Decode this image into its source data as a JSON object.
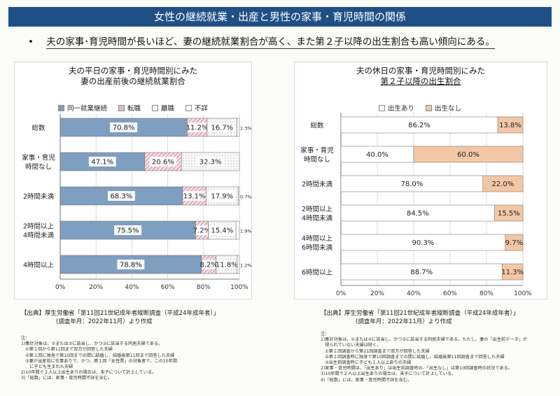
{
  "header": {
    "title": "女性の継続就業・出産と男性の家事・育児時間の関係",
    "bullet": "•",
    "lead": "夫の家事･育児時間が長いほど、妻の継続就業割合が高く、また第２子以降の出生割合も高い傾向にある。"
  },
  "left": {
    "title_line1": "夫の平日の家事・育児時間別にみた",
    "title_line2": "妻の出産前後の継続就業割合",
    "source_line1": "【出典】厚生労働省「第11回21世紀成年者縦断調査（平成24年成年者）」",
    "source_line2": "(調査年月：2022年11月）より作成",
    "notes": [
      "注：",
      "1)集計対象は、①または②に該当し、かつ③に該当する同居夫婦である。",
      "　①第１回から第11回まで双方が回答した夫婦",
      "　②第１回に独身で第10回までの間に結婚し、結婚後第11回まで回答した夫婦",
      "　③妻が出産前に仕事ありで、かつ、第１回「女性票」の対象者で、この10年間",
      "　　に子ども生まれた夫婦",
      "2)10年間で２人以上出生ありの場合は、末子について計上している。",
      "3)「総数」には、家事・育児時間不詳を含む。"
    ]
  },
  "right": {
    "title_line1": "夫の休日の家事・育児時間別にみた",
    "title_line2": "第２子以降の出生割合",
    "source_line1": "【出典】厚生労働省「第11回21世紀成年者縦断調査（平成24年成年者）」",
    "source_line2": "(調査年月：2022年11月）より作成",
    "notes": [
      "注：",
      "1)集計対象は、①または②に該当し、かつ③に該当する同居夫婦である。ただし、妻の「出生前データ」が",
      "　得られていない夫婦は除く。",
      "　①第１回調査から第11回調査まで双方が回答した夫婦",
      "　②第１回調査時に独身で第10回調査までの間に結婚し、結婚後第11回調査まで回答した夫婦",
      "　③出生前調査時に子ども１人以上ありの夫婦",
      "2)家事・育児時間は、「出生あり」は出生前調査時の、「出生なし」は第10回調査時の状況である。",
      "3)10年間で２人以上出生ありの場合は、末子について計上している。",
      "4)「総数」には、家事・育児時間不詳を含む。"
    ]
  },
  "chart_data": [
    {
      "type": "bar",
      "orientation": "horizontal",
      "stacked": true,
      "title": "夫の平日の家事・育児時間別にみた 妻の出産前後の継続就業割合",
      "categories": [
        "総数",
        "家事・育児時間なし",
        "2時間未満",
        "2時間以上4時間未満",
        "4時間以上"
      ],
      "category_lines": [
        [
          "総数"
        ],
        [
          "家事・育児",
          "時間なし"
        ],
        [
          "2時間未満"
        ],
        [
          "2時間以上",
          "4時間未満"
        ],
        [
          "4時間以上"
        ]
      ],
      "series": [
        {
          "name": "同一就業継続",
          "values": [
            70.8,
            47.1,
            68.3,
            75.5,
            78.8
          ],
          "color": "#7f9fc1"
        },
        {
          "name": "転職",
          "values": [
            11.2,
            20.6,
            13.1,
            7.2,
            8.2
          ],
          "color": "#e8b9c3"
        },
        {
          "name": "離職",
          "values": [
            16.7,
            32.3,
            17.9,
            15.4,
            11.8
          ],
          "color": "#f4f4f4"
        },
        {
          "name": "不詳",
          "values": [
            1.3,
            0.0,
            0.7,
            1.9,
            1.2
          ],
          "color": "#ffffff"
        }
      ],
      "labels": [
        [
          "70.8%",
          "11.2%",
          "16.7%",
          "1.3%"
        ],
        [
          "47.1%",
          "20.6%",
          "32.3%",
          ""
        ],
        [
          "68.3%",
          "13.1%",
          "17.9%",
          "0.7%"
        ],
        [
          "75.5%",
          "7.2%",
          "15.4%",
          "1.9%"
        ],
        [
          "78.8%",
          "8.2%",
          "11.8%",
          "1.2%"
        ]
      ],
      "xlim": [
        0,
        100
      ],
      "xticks": [
        "0%",
        "20%",
        "40%",
        "60%",
        "80%",
        "100%"
      ],
      "legend": "top"
    },
    {
      "type": "bar",
      "orientation": "horizontal",
      "stacked": true,
      "title": "夫の休日の家事・育児時間別にみた 第２子以降の出生割合",
      "categories": [
        "総数",
        "家事・育児時間なし",
        "2時間未満",
        "2時間以上4時間未満",
        "4時間以上6時間未満",
        "6時間以上"
      ],
      "category_lines": [
        [
          "総数"
        ],
        [
          "家事・育児",
          "時間なし"
        ],
        [
          "2時間未満"
        ],
        [
          "2時間以上",
          "4時間未満"
        ],
        [
          "4時間以上",
          "6時間未満"
        ],
        [
          "6時間以上"
        ]
      ],
      "series": [
        {
          "name": "出生あり",
          "values": [
            86.2,
            40.0,
            78.0,
            84.5,
            90.3,
            88.7
          ],
          "color": "#ffffff"
        },
        {
          "name": "出生なし",
          "values": [
            13.8,
            60.0,
            22.0,
            15.5,
            9.7,
            11.3
          ],
          "color": "#f3c7a5"
        }
      ],
      "labels": [
        [
          "86.2%",
          "13.8%"
        ],
        [
          "40.0%",
          "60.0%"
        ],
        [
          "78.0%",
          "22.0%"
        ],
        [
          "84.5%",
          "15.5%"
        ],
        [
          "90.3%",
          "9.7%"
        ],
        [
          "88.7%",
          "11.3%"
        ]
      ],
      "xlim": [
        0,
        100
      ],
      "xticks": [
        "0%",
        "20%",
        "40%",
        "60%",
        "80%",
        "100%"
      ],
      "legend": "top"
    }
  ]
}
